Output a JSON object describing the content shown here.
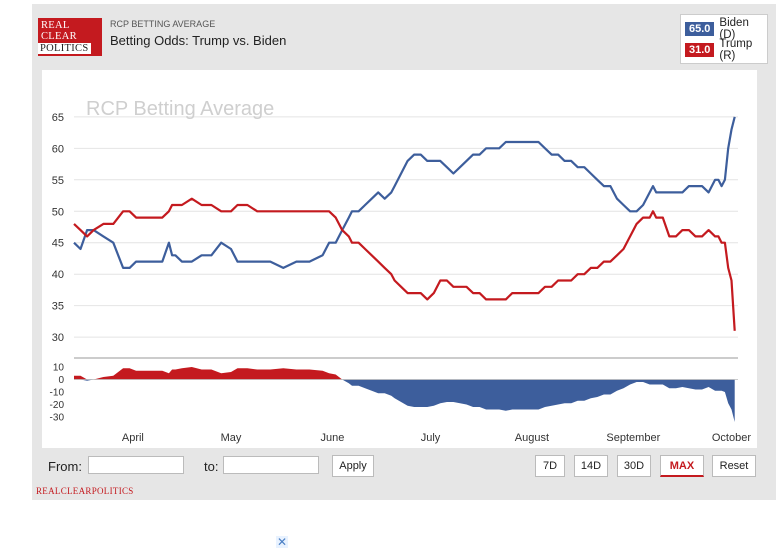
{
  "header": {
    "logo": {
      "line1": "REAL",
      "line2": "CLEAR",
      "line3": "POLITICS"
    },
    "kicker": "RCP BETTING AVERAGE",
    "title": "Betting Odds: Trump vs. Biden"
  },
  "legend": [
    {
      "value": "65.0",
      "name": "Biden (D)",
      "color": "#3d5e9c"
    },
    {
      "value": "31.0",
      "name": "Trump (R)",
      "color": "#c41a1f"
    }
  ],
  "controls": {
    "from_label": "From:",
    "to_label": "to:",
    "apply_label": "Apply",
    "ranges": [
      "7D",
      "14D",
      "30D",
      "MAX"
    ],
    "active_range": "MAX",
    "reset_label": "Reset"
  },
  "footer_brand": "REALCLEARPOLITICS",
  "ad_close": "✕",
  "chart_data": {
    "type": "line",
    "watermark": "RCP Betting Average",
    "x_unit": "days since first date shown (approx. mid-March)",
    "x_months": [
      {
        "label": "April",
        "day": 18
      },
      {
        "label": "May",
        "day": 48
      },
      {
        "label": "June",
        "day": 79
      },
      {
        "label": "July",
        "day": 109
      },
      {
        "label": "August",
        "day": 140
      },
      {
        "label": "September",
        "day": 171
      },
      {
        "label": "October",
        "day": 201
      }
    ],
    "xlim": [
      0,
      203
    ],
    "ylim": [
      27,
      68
    ],
    "yticks": [
      30,
      35,
      40,
      45,
      50,
      55,
      60,
      65
    ],
    "series": [
      {
        "name": "Biden (D)",
        "color": "#3d5e9c",
        "x": [
          0,
          2,
          4,
          6,
          9,
          12,
          15,
          17,
          19,
          21,
          24,
          27,
          29,
          30,
          31,
          33,
          36,
          39,
          42,
          45,
          48,
          50,
          53,
          56,
          60,
          64,
          68,
          72,
          76,
          78,
          80,
          82,
          84,
          85,
          87,
          89,
          91,
          93,
          95,
          97,
          98,
          100,
          102,
          104,
          106,
          108,
          110,
          112,
          114,
          116,
          118,
          120,
          122,
          124,
          126,
          128,
          130,
          132,
          134,
          136,
          138,
          140,
          142,
          144,
          146,
          148,
          150,
          152,
          154,
          156,
          158,
          160,
          162,
          164,
          166,
          168,
          170,
          172,
          174,
          176,
          177,
          178,
          180,
          182,
          184,
          186,
          188,
          190,
          192,
          194,
          196,
          197,
          198,
          199,
          200,
          201,
          202
        ],
        "y": [
          45,
          44,
          47,
          47,
          46,
          45,
          41,
          41,
          42,
          42,
          42,
          42,
          45,
          43,
          43,
          42,
          42,
          43,
          43,
          45,
          44,
          42,
          42,
          42,
          42,
          41,
          42,
          42,
          43,
          45,
          45,
          47,
          49,
          50,
          50,
          51,
          52,
          53,
          52,
          53,
          54,
          56,
          58,
          59,
          59,
          58,
          58,
          58,
          57,
          56,
          57,
          58,
          59,
          59,
          60,
          60,
          60,
          61,
          61,
          61,
          61,
          61,
          61,
          60,
          59,
          59,
          58,
          58,
          57,
          57,
          56,
          55,
          54,
          54,
          52,
          51,
          50,
          50,
          51,
          53,
          54,
          53,
          53,
          53,
          53,
          53,
          54,
          54,
          54,
          53,
          55,
          55,
          54,
          55,
          60,
          63,
          65
        ]
      },
      {
        "name": "Trump (R)",
        "color": "#c41a1f",
        "x": [
          0,
          2,
          4,
          6,
          9,
          12,
          15,
          17,
          19,
          21,
          24,
          27,
          29,
          30,
          31,
          33,
          36,
          39,
          42,
          45,
          48,
          50,
          53,
          56,
          60,
          64,
          68,
          72,
          76,
          78,
          80,
          82,
          84,
          85,
          87,
          89,
          91,
          93,
          95,
          97,
          98,
          100,
          102,
          104,
          106,
          108,
          110,
          112,
          114,
          116,
          118,
          120,
          122,
          124,
          126,
          128,
          130,
          132,
          134,
          136,
          138,
          140,
          142,
          144,
          146,
          148,
          150,
          152,
          154,
          156,
          158,
          160,
          162,
          164,
          166,
          168,
          170,
          172,
          174,
          176,
          177,
          178,
          180,
          182,
          184,
          186,
          188,
          190,
          192,
          194,
          196,
          197,
          198,
          199,
          200,
          201,
          202
        ],
        "y": [
          48,
          47,
          46,
          47,
          48,
          48,
          50,
          50,
          49,
          49,
          49,
          49,
          50,
          51,
          51,
          51,
          52,
          51,
          51,
          50,
          50,
          51,
          51,
          50,
          50,
          50,
          50,
          50,
          50,
          50,
          49,
          47,
          46,
          45,
          45,
          44,
          43,
          42,
          41,
          40,
          39,
          38,
          37,
          37,
          37,
          36,
          37,
          39,
          39,
          38,
          38,
          38,
          37,
          37,
          36,
          36,
          36,
          36,
          37,
          37,
          37,
          37,
          37,
          38,
          38,
          39,
          39,
          39,
          40,
          40,
          41,
          41,
          42,
          42,
          43,
          44,
          46,
          48,
          49,
          49,
          50,
          49,
          49,
          46,
          46,
          47,
          47,
          46,
          46,
          47,
          46,
          46,
          45,
          45,
          41,
          39,
          31
        ]
      }
    ],
    "spread": {
      "yticks": [
        10,
        0,
        -10,
        -20,
        -30
      ],
      "ylim": [
        -34,
        14
      ],
      "positive_color": "#c41a1f",
      "negative_color": "#3d5e9c"
    }
  }
}
